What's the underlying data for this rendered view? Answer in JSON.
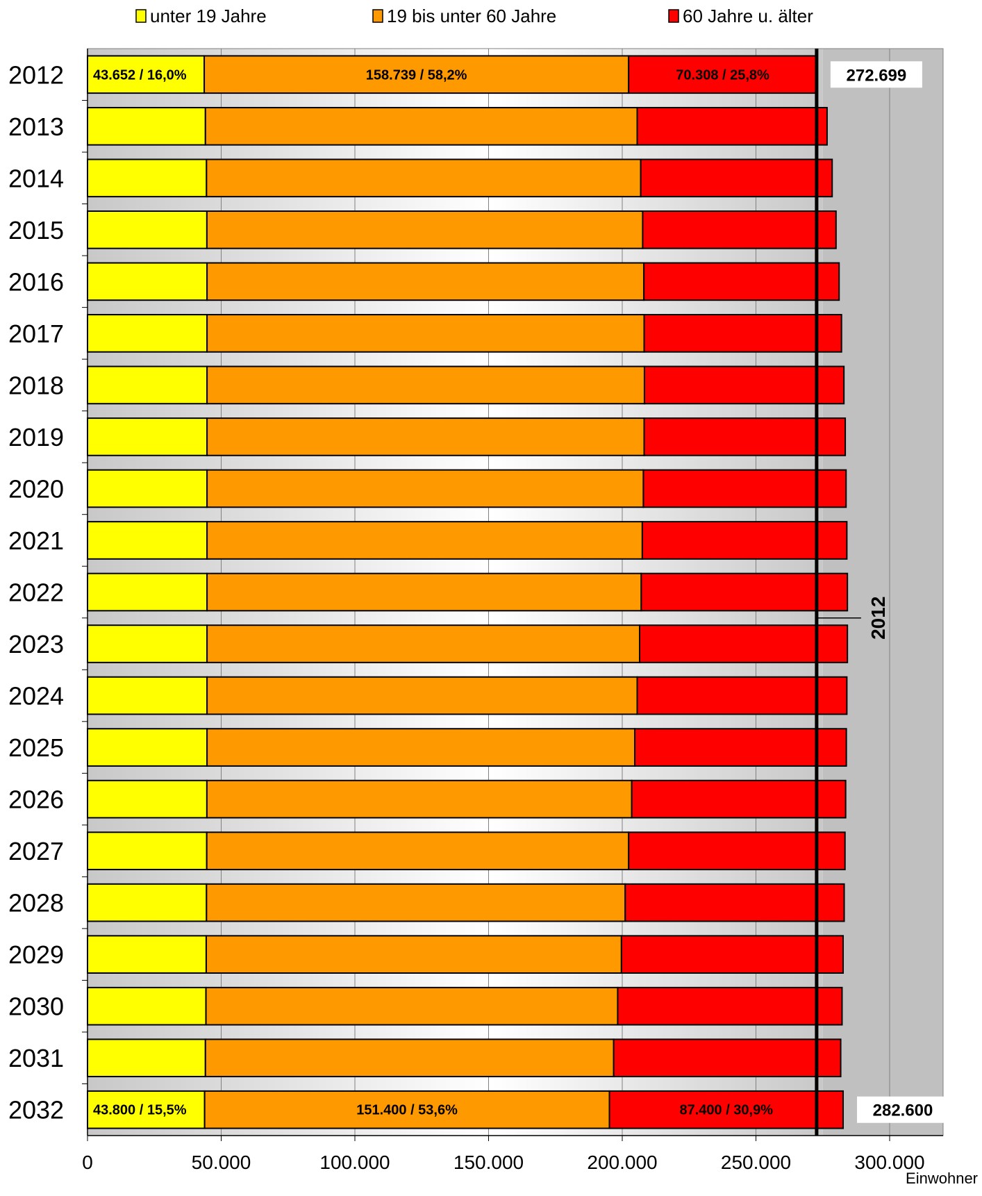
{
  "chart_data": {
    "type": "bar",
    "orientation": "horizontal",
    "stacked": true,
    "categories": [
      "2012",
      "2013",
      "2014",
      "2015",
      "2016",
      "2017",
      "2018",
      "2019",
      "2020",
      "2021",
      "2022",
      "2023",
      "2024",
      "2025",
      "2026",
      "2027",
      "2028",
      "2029",
      "2030",
      "2031",
      "2032"
    ],
    "series": [
      {
        "name": "unter 19 Jahre",
        "color": "#ffff00",
        "values": [
          43652,
          44100,
          44500,
          44650,
          44700,
          44700,
          44700,
          44700,
          44700,
          44700,
          44700,
          44700,
          44700,
          44700,
          44650,
          44600,
          44500,
          44400,
          44300,
          44100,
          43800
        ]
      },
      {
        "name": "19 bis unter 60 Jahre",
        "color": "#ff9900",
        "values": [
          158739,
          161500,
          162400,
          163000,
          163400,
          163500,
          163600,
          163500,
          163200,
          162800,
          162400,
          161800,
          160900,
          160000,
          158900,
          157800,
          156600,
          155300,
          154000,
          152700,
          151400
        ]
      },
      {
        "name": "60 Jahre u. älter",
        "color": "#ff0000",
        "values": [
          70308,
          71000,
          71600,
          72300,
          73000,
          73800,
          74600,
          75200,
          75800,
          76500,
          77100,
          77700,
          78400,
          79100,
          80000,
          80900,
          81900,
          82900,
          83900,
          84900,
          87400
        ]
      }
    ],
    "segment_labels": {
      "2012": [
        "43.652 / 16,0%",
        "158.739 / 58,2%",
        "70.308 / 25,8%"
      ],
      "2032": [
        "43.800 / 15,5%",
        "151.400 / 53,6%",
        "87.400 / 30,9%"
      ]
    },
    "totals": {
      "2012": "272.699",
      "2032": "282.600"
    },
    "reference_line": {
      "value": 272699,
      "label": "2012"
    },
    "xlim": [
      0,
      320000
    ],
    "x_ticks": [
      0,
      50000,
      100000,
      150000,
      200000,
      250000,
      300000
    ],
    "x_tick_labels": [
      "0",
      "50.000",
      "100.000",
      "150.000",
      "200.000",
      "250.000",
      "300.000"
    ],
    "xlabel": "Einwohner",
    "legend_position": "top",
    "grid": "vertical"
  }
}
